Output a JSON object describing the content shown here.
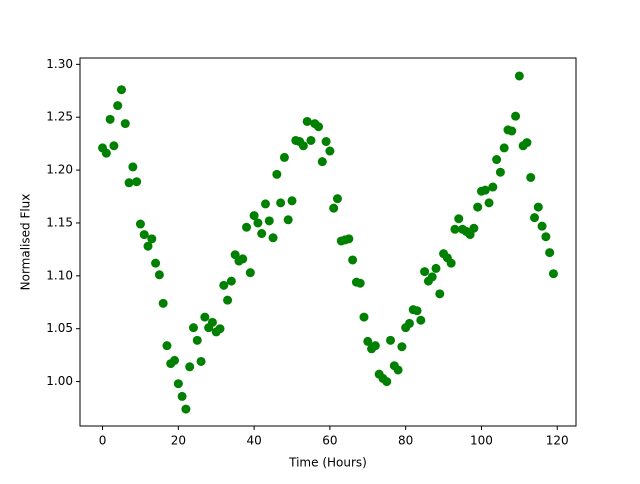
{
  "chart_data": {
    "type": "scatter",
    "x_label": "Time (Hours)",
    "y_label": "Normalised Flux",
    "x": [
      0,
      1,
      2,
      3,
      4,
      5,
      6,
      7,
      8,
      9,
      10,
      11,
      12,
      13,
      14,
      15,
      16,
      17,
      18,
      19,
      20,
      21,
      22,
      23,
      24,
      25,
      26,
      27,
      28,
      29,
      30,
      31,
      32,
      33,
      34,
      35,
      36,
      37,
      38,
      39,
      40,
      41,
      42,
      43,
      44,
      45,
      46,
      47,
      48,
      49,
      50,
      51,
      52,
      53,
      54,
      55,
      56,
      57,
      58,
      59,
      60,
      61,
      62,
      63,
      64,
      65,
      66,
      67,
      68,
      69,
      70,
      71,
      72,
      73,
      74,
      75,
      76,
      77,
      78,
      79,
      80,
      81,
      82,
      83,
      84,
      85,
      86,
      87,
      88,
      89,
      90,
      91,
      92,
      93,
      94,
      95,
      96,
      97,
      98,
      99,
      100,
      101,
      102,
      103,
      104,
      105,
      106,
      107,
      108,
      109,
      110,
      111,
      112,
      113,
      114,
      115,
      116,
      117,
      118,
      119
    ],
    "series": [
      {
        "name": "Flux",
        "color": "#008000",
        "values": [
          1.221,
          1.216,
          1.248,
          1.223,
          1.261,
          1.276,
          1.244,
          1.188,
          1.203,
          1.189,
          1.149,
          1.139,
          1.128,
          1.135,
          1.112,
          1.101,
          1.074,
          1.034,
          1.017,
          1.02,
          0.998,
          0.986,
          0.974,
          1.014,
          1.051,
          1.039,
          1.019,
          1.061,
          1.051,
          1.056,
          1.047,
          1.05,
          1.091,
          1.077,
          1.095,
          1.12,
          1.114,
          1.116,
          1.146,
          1.103,
          1.157,
          1.15,
          1.14,
          1.168,
          1.152,
          1.136,
          1.196,
          1.169,
          1.212,
          1.153,
          1.171,
          1.228,
          1.227,
          1.223,
          1.246,
          1.228,
          1.244,
          1.241,
          1.208,
          1.227,
          1.218,
          1.164,
          1.173,
          1.133,
          1.134,
          1.135,
          1.115,
          1.094,
          1.093,
          1.061,
          1.038,
          1.031,
          1.034,
          1.007,
          1.003,
          1.0,
          1.039,
          1.015,
          1.011,
          1.033,
          1.051,
          1.055,
          1.068,
          1.067,
          1.058,
          1.104,
          1.095,
          1.099,
          1.107,
          1.083,
          1.121,
          1.117,
          1.112,
          1.144,
          1.154,
          1.144,
          1.142,
          1.139,
          1.145,
          1.165,
          1.18,
          1.181,
          1.169,
          1.184,
          1.21,
          1.198,
          1.221,
          1.238,
          1.237,
          1.251,
          1.289,
          1.223,
          1.226,
          1.193,
          1.155,
          1.165,
          1.147,
          1.137,
          1.122,
          1.102
        ]
      }
    ],
    "xlim": [
      -5.95,
      124.95
    ],
    "xticks": [
      0,
      20,
      40,
      60,
      80,
      100,
      120
    ],
    "ylim": [
      0.958,
      1.306
    ],
    "yticks": [
      {
        "value": 1.0,
        "label": "1.00"
      },
      1.05,
      {
        "value": 1.1,
        "label": "1.10"
      },
      1.15,
      {
        "value": 1.2,
        "label": "1.20"
      },
      1.25,
      {
        "value": 1.3,
        "label": "1.30"
      }
    ]
  }
}
